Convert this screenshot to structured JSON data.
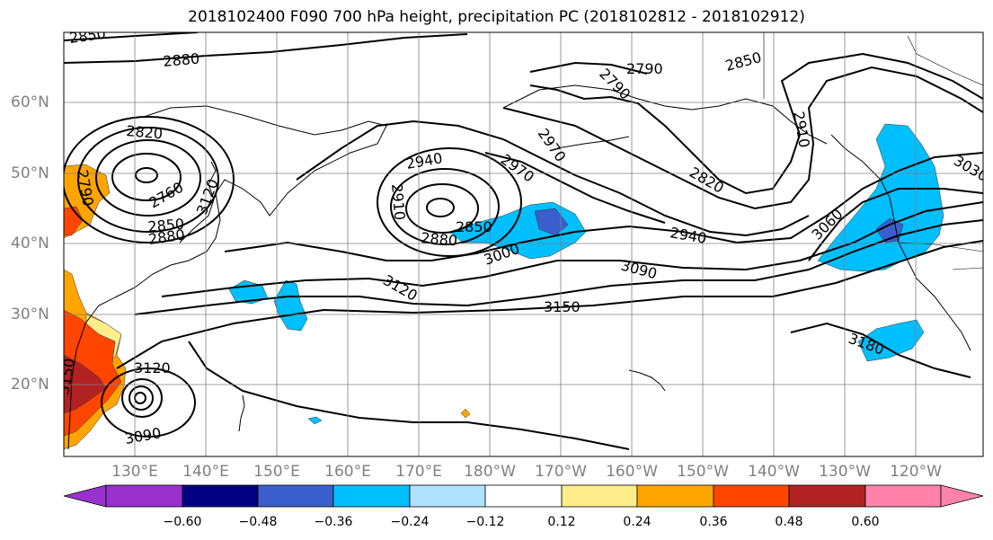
{
  "title": "2018102400 F090 700 hPa height, precipitation PC (2018102812 - 2018102912)",
  "map": {
    "projection": "cylindrical",
    "lon_labels": [
      "130°E",
      "140°E",
      "150°E",
      "160°E",
      "170°E",
      "180°W",
      "170°W",
      "160°W",
      "150°W",
      "140°W",
      "130°W",
      "120°W"
    ],
    "lat_labels": [
      "60°N",
      "50°N",
      "40°N",
      "30°N",
      "20°N"
    ],
    "gridlines": true,
    "contour_color": "#000000",
    "contour_labels": [
      "2850",
      "2880",
      "2820",
      "2760",
      "2790",
      "2850",
      "2880",
      "2790",
      "2850",
      "2820",
      "2940",
      "2970",
      "2910",
      "2970",
      "2880",
      "2850",
      "3000",
      "2940",
      "3090",
      "3120",
      "3150",
      "3180",
      "3060",
      "3030",
      "2910",
      "3120",
      "3090",
      "3150",
      "2790",
      "3120"
    ]
  },
  "colorbar": {
    "ticks": [
      "−0.60",
      "−0.48",
      "−0.36",
      "−0.24",
      "−0.12",
      "0.12",
      "0.24",
      "0.36",
      "0.48",
      "0.60"
    ],
    "colors": [
      "#9932cc",
      "#000080",
      "#3a5fcd",
      "#00bfff",
      "#b0e2ff",
      "#ffffff",
      "#ffec8b",
      "#ffa500",
      "#ff4500",
      "#b22222",
      "#ff82ab"
    ]
  }
}
